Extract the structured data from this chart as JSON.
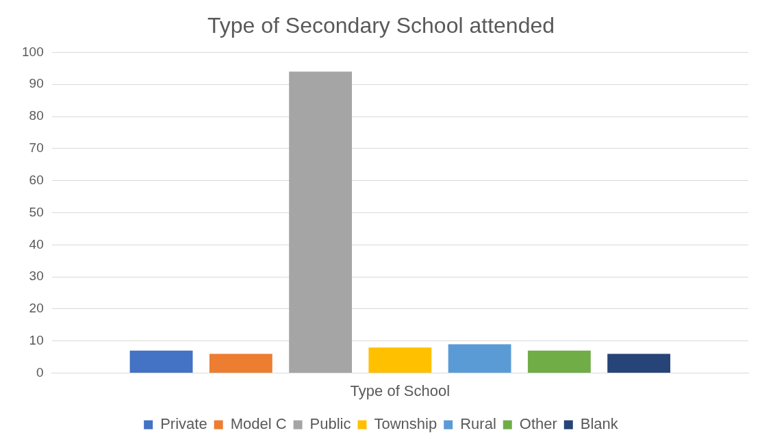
{
  "chart_data": {
    "type": "bar",
    "title": "Type of Secondary School attended",
    "categories": [
      "Type of School"
    ],
    "series": [
      {
        "name": "Private",
        "color": "#4472c4",
        "values": [
          7
        ]
      },
      {
        "name": "Model C",
        "color": "#ed7d31",
        "values": [
          6
        ]
      },
      {
        "name": "Public",
        "color": "#a5a5a5",
        "values": [
          94
        ]
      },
      {
        "name": "Township",
        "color": "#ffc000",
        "values": [
          8
        ]
      },
      {
        "name": "Rural",
        "color": "#5b9bd5",
        "values": [
          9
        ]
      },
      {
        "name": "Other",
        "color": "#70ad47",
        "values": [
          7
        ]
      },
      {
        "name": "Blank",
        "color": "#264478",
        "values": [
          6
        ]
      }
    ],
    "ylim": [
      0,
      100
    ],
    "yticks": [
      0,
      10,
      20,
      30,
      40,
      50,
      60,
      70,
      80,
      90,
      100
    ],
    "grid": "y",
    "legend": "bottom"
  }
}
